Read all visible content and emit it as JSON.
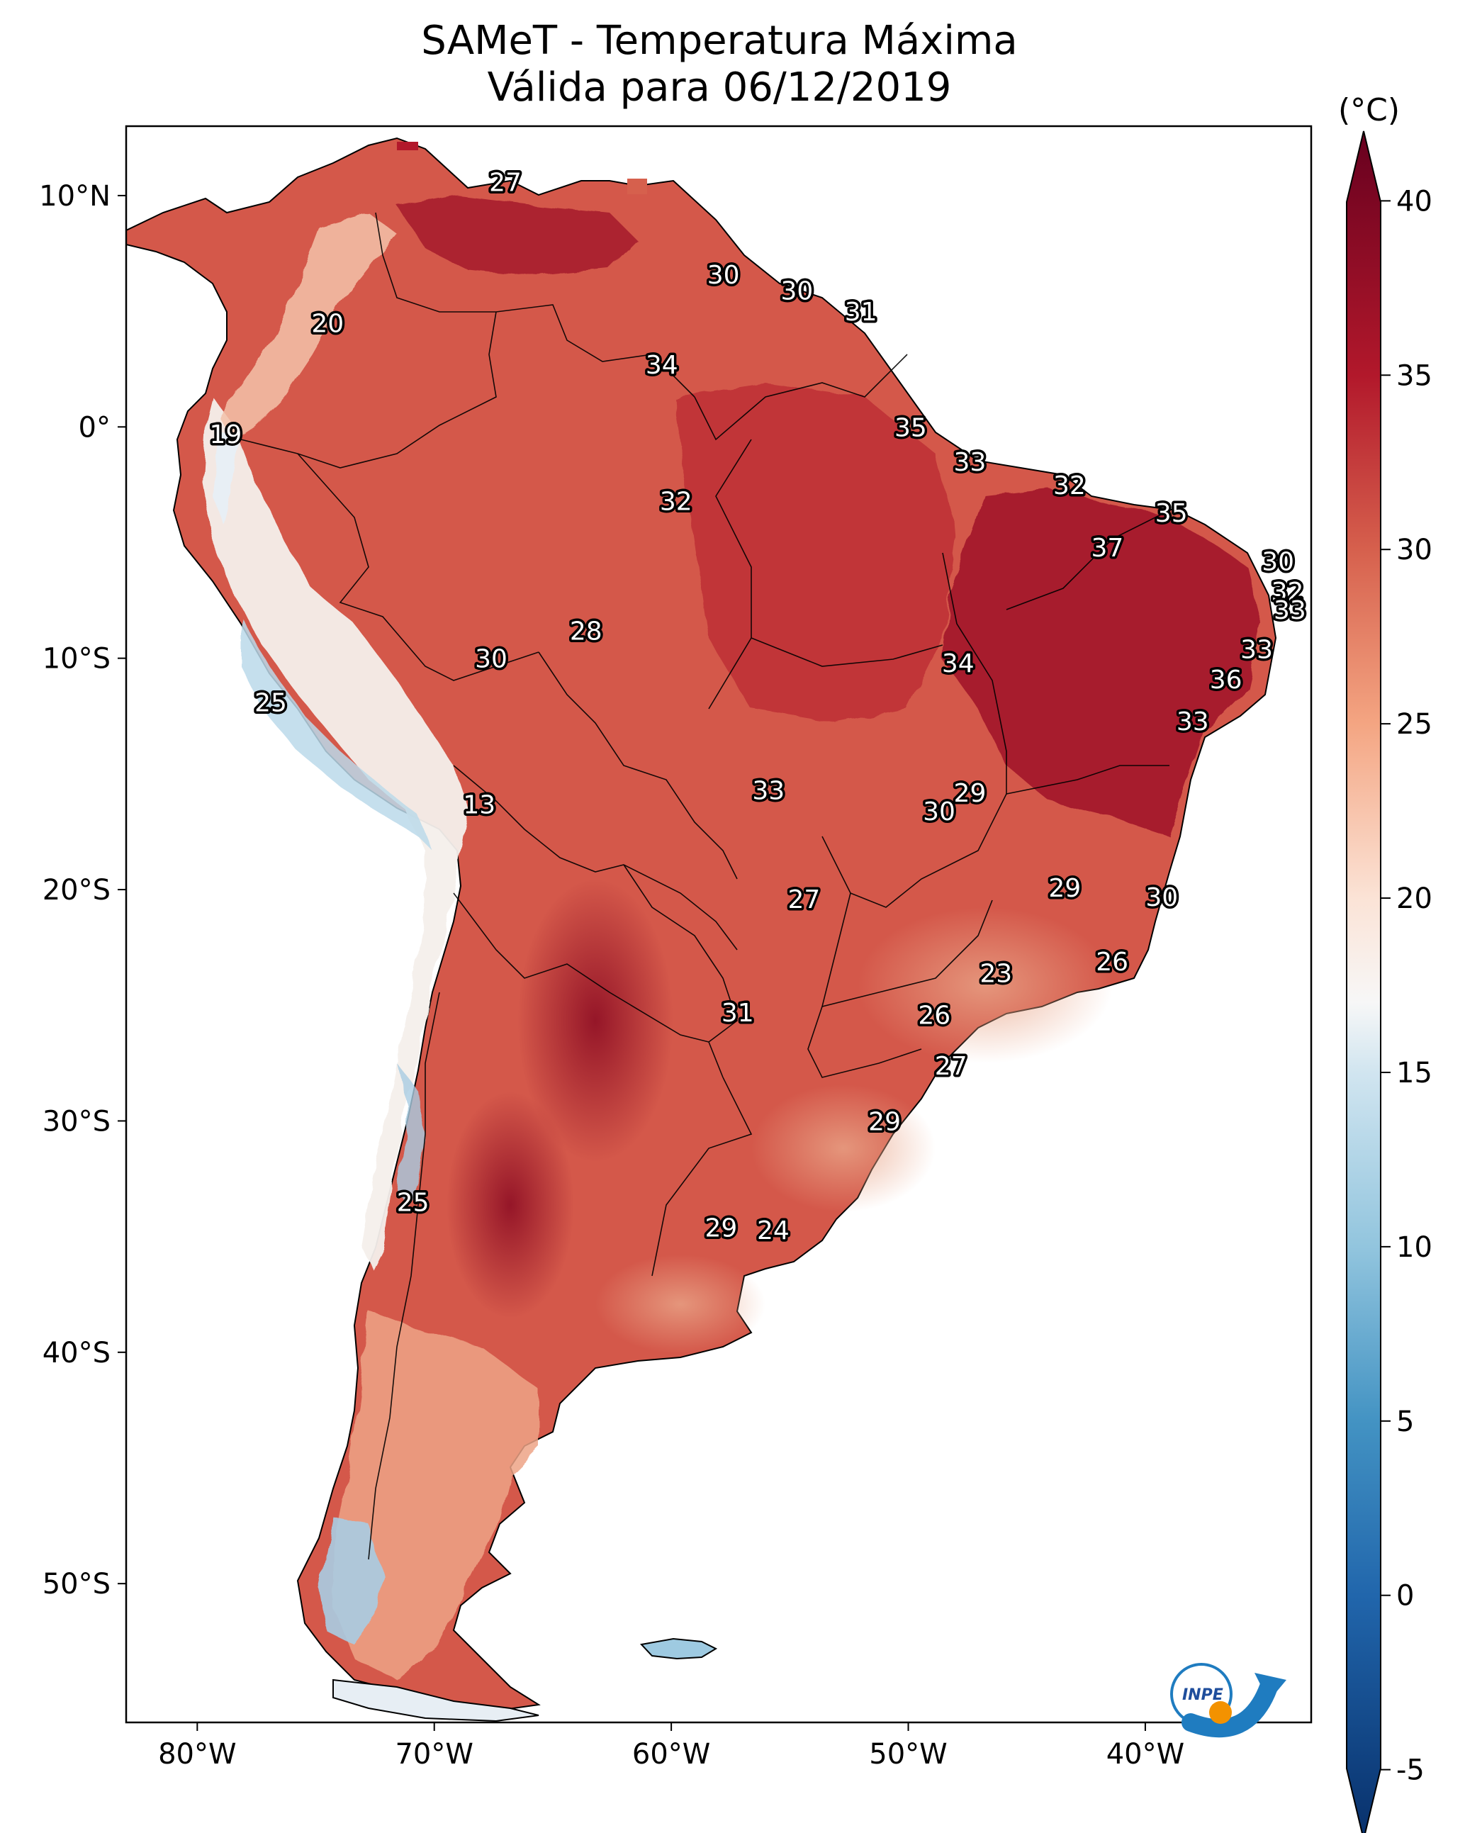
{
  "title": "SAMeT - Temperatura Máxima",
  "subtitle": "Válida para 06/12/2019",
  "colorbar": {
    "unit_label": "(°C)",
    "ticks": [
      "-5",
      "0",
      "5",
      "10",
      "15",
      "20",
      "25",
      "30",
      "35",
      "40"
    ],
    "min": -7,
    "max": 42,
    "colormap": "RdBu_r",
    "colors": {
      "dark_blue": "#08306b",
      "blue": "#2c7fb8",
      "light_blue": "#9ecae1",
      "white": "#f7f7f7",
      "peach": "#f4a582",
      "red": "#d6604d",
      "dark_red": "#b2182b",
      "maroon": "#67001f"
    }
  },
  "axes": {
    "lon_ticks": [
      "80°W",
      "70°W",
      "60°W",
      "50°W",
      "40°W"
    ],
    "lat_ticks": [
      "10°N",
      "0°",
      "10°S",
      "20°S",
      "30°S",
      "40°S",
      "50°S"
    ],
    "lon_range": [
      -83,
      -33
    ],
    "lat_range": [
      -56,
      13
    ]
  },
  "map_labels": [
    {
      "text": "27",
      "lon": -67.0,
      "lat": 10.6
    },
    {
      "text": "30",
      "lon": -57.8,
      "lat": 6.6
    },
    {
      "text": "30",
      "lon": -54.7,
      "lat": 5.9
    },
    {
      "text": "31",
      "lon": -52.0,
      "lat": 5.0
    },
    {
      "text": "20",
      "lon": -74.5,
      "lat": 4.5
    },
    {
      "text": "34",
      "lon": -60.4,
      "lat": 2.7
    },
    {
      "text": "19",
      "lon": -78.8,
      "lat": -0.3
    },
    {
      "text": "35",
      "lon": -49.9,
      "lat": 0.0
    },
    {
      "text": "33",
      "lon": -47.4,
      "lat": -1.5
    },
    {
      "text": "32",
      "lon": -43.2,
      "lat": -2.5
    },
    {
      "text": "32",
      "lon": -59.8,
      "lat": -3.2
    },
    {
      "text": "35",
      "lon": -38.9,
      "lat": -3.7
    },
    {
      "text": "37",
      "lon": -41.6,
      "lat": -5.2
    },
    {
      "text": "30",
      "lon": -34.4,
      "lat": -5.8
    },
    {
      "text": "32",
      "lon": -34.0,
      "lat": -7.1
    },
    {
      "text": "33",
      "lon": -33.9,
      "lat": -7.9
    },
    {
      "text": "28",
      "lon": -63.6,
      "lat": -8.8
    },
    {
      "text": "30",
      "lon": -67.6,
      "lat": -10.0
    },
    {
      "text": "34",
      "lon": -47.9,
      "lat": -10.2
    },
    {
      "text": "33",
      "lon": -35.3,
      "lat": -9.6
    },
    {
      "text": "36",
      "lon": -36.6,
      "lat": -10.9
    },
    {
      "text": "25",
      "lon": -76.9,
      "lat": -11.9
    },
    {
      "text": "33",
      "lon": -38.0,
      "lat": -12.7
    },
    {
      "text": "29",
      "lon": -47.4,
      "lat": -15.8
    },
    {
      "text": "33",
      "lon": -55.9,
      "lat": -15.7
    },
    {
      "text": "13",
      "lon": -68.1,
      "lat": -16.3
    },
    {
      "text": "30",
      "lon": -48.7,
      "lat": -16.6
    },
    {
      "text": "29",
      "lon": -43.4,
      "lat": -19.9
    },
    {
      "text": "30",
      "lon": -39.3,
      "lat": -20.3
    },
    {
      "text": "27",
      "lon": -54.4,
      "lat": -20.4
    },
    {
      "text": "26",
      "lon": -41.4,
      "lat": -23.1
    },
    {
      "text": "23",
      "lon": -46.3,
      "lat": -23.6
    },
    {
      "text": "26",
      "lon": -48.9,
      "lat": -25.4
    },
    {
      "text": "31",
      "lon": -57.2,
      "lat": -25.3
    },
    {
      "text": "27",
      "lon": -48.2,
      "lat": -27.6
    },
    {
      "text": "29",
      "lon": -51.0,
      "lat": -30.0
    },
    {
      "text": "25",
      "lon": -70.9,
      "lat": -33.5
    },
    {
      "text": "29",
      "lon": -57.9,
      "lat": -34.6
    },
    {
      "text": "24",
      "lon": -55.7,
      "lat": -34.7
    }
  ],
  "logo": {
    "text": "INPE",
    "colors": {
      "blue": "#1f7cc0",
      "orange": "#f39200"
    }
  }
}
